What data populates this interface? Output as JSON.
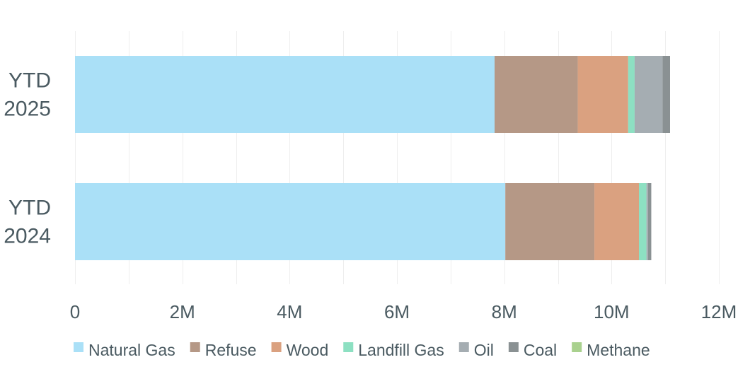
{
  "chart_data": {
    "type": "bar",
    "orientation": "horizontal",
    "stacked": true,
    "title": "",
    "xlabel": "",
    "ylabel": "",
    "categories": [
      [
        "YTD",
        "2025"
      ],
      [
        "YTD",
        "2024"
      ]
    ],
    "xlim": [
      0,
      12000000
    ],
    "x_ticks": [
      {
        "value": 0,
        "label": "0"
      },
      {
        "value": 2000000,
        "label": "2M"
      },
      {
        "value": 4000000,
        "label": "4M"
      },
      {
        "value": 6000000,
        "label": "6M"
      },
      {
        "value": 8000000,
        "label": "8M"
      },
      {
        "value": 10000000,
        "label": "10M"
      },
      {
        "value": 12000000,
        "label": "12M"
      }
    ],
    "grid": true,
    "legend_position": "bottom",
    "series": [
      {
        "name": "Natural Gas",
        "color": "#aae0f7",
        "values": [
          7820000,
          8020000
        ]
      },
      {
        "name": "Refuse",
        "color": "#b59886",
        "values": [
          1550000,
          1660000
        ]
      },
      {
        "name": "Wood",
        "color": "#daa180",
        "values": [
          940000,
          830000
        ]
      },
      {
        "name": "Landfill Gas",
        "color": "#8de0c2",
        "values": [
          120000,
          140000
        ]
      },
      {
        "name": "Oil",
        "color": "#a5adb2",
        "values": [
          520000,
          30000
        ]
      },
      {
        "name": "Coal",
        "color": "#8a9193",
        "values": [
          140000,
          60000
        ]
      },
      {
        "name": "Methane",
        "color": "#a9d18e",
        "values": [
          0,
          0
        ]
      }
    ]
  }
}
